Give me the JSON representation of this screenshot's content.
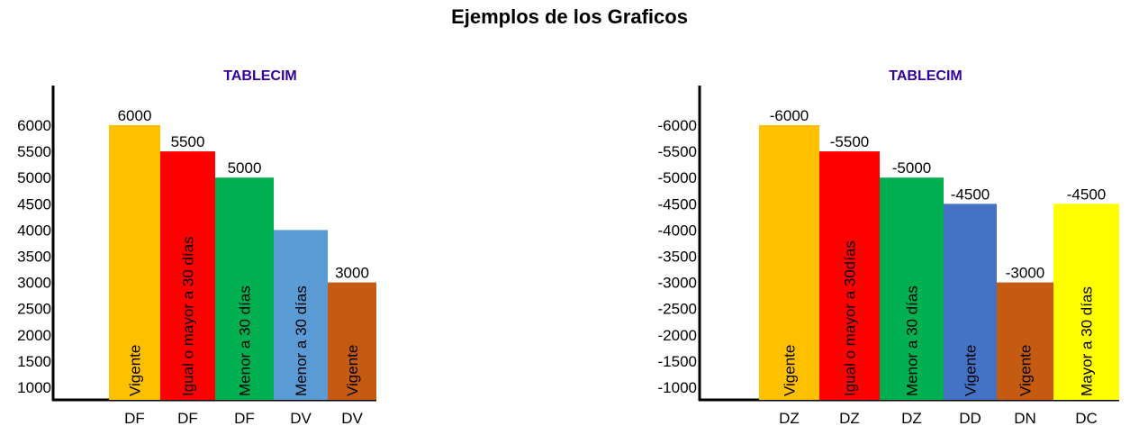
{
  "title": "Ejemplos de los Graficos",
  "chart_data": [
    {
      "type": "bar",
      "title": "TABLECIM",
      "title_color": "#330099",
      "yticks": [
        "6000",
        "5500",
        "5000",
        "4500",
        "4000",
        "3500",
        "3000",
        "2500",
        "2000",
        "1500",
        "1000"
      ],
      "ylim": [
        750,
        6250
      ],
      "categories": [
        "DF",
        "DF",
        "DF",
        "DV",
        "DV"
      ],
      "values": [
        6000,
        5500,
        5000,
        4000,
        3000
      ],
      "value_labels": [
        "6000",
        "5500",
        "5000",
        "",
        "3000"
      ],
      "bar_labels": [
        "Vigente",
        "Igual o mayor a 30 días",
        "Menor a 30 días",
        "Menor a 30 días",
        "Vigente"
      ],
      "colors": [
        "#FFC000",
        "#FF0000",
        "#00B050",
        "#5B9BD5",
        "#C55A11"
      ],
      "grid": false,
      "legend": "none"
    },
    {
      "type": "bar",
      "title": "TABLECIM",
      "title_color": "#330099",
      "yticks": [
        "-6000",
        "-5500",
        "-5000",
        "-4500",
        "-4000",
        "-3500",
        "-3000",
        "-2500",
        "-2000",
        "-1500",
        "-1000"
      ],
      "ylim": [
        -750,
        -6250
      ],
      "categories": [
        "DZ",
        "DZ",
        "DZ",
        "DD",
        "DN",
        "DC"
      ],
      "values": [
        -6000,
        -5500,
        -5000,
        -4500,
        -3000,
        -4500
      ],
      "value_labels": [
        "-6000",
        "-5500",
        "-5000",
        "-4500",
        "-3000",
        "-4500"
      ],
      "bar_labels": [
        "Vigente",
        "Igual o mayor a 30días",
        "Menor a 30 días",
        "Vigente",
        "Vigente",
        "Mayor a 30 días"
      ],
      "colors": [
        "#FFC000",
        "#FF0000",
        "#00B050",
        "#4472C4",
        "#C55A11",
        "#FFFF00"
      ],
      "grid": false,
      "legend": "none"
    }
  ]
}
